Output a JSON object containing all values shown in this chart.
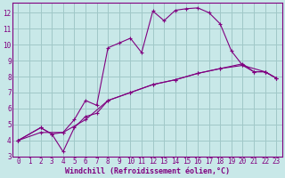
{
  "xlabel": "Windchill (Refroidissement éolien,°C)",
  "background_color": "#c8e8e8",
  "grid_color": "#a0c8c8",
  "line_color": "#800080",
  "spine_color": "#800080",
  "xlim": [
    -0.5,
    23.5
  ],
  "ylim": [
    3,
    12.6
  ],
  "xticks": [
    0,
    1,
    2,
    3,
    4,
    5,
    6,
    7,
    8,
    9,
    10,
    11,
    12,
    13,
    14,
    15,
    16,
    17,
    18,
    19,
    20,
    21,
    22,
    23
  ],
  "yticks": [
    3,
    4,
    5,
    6,
    7,
    8,
    9,
    10,
    11,
    12
  ],
  "series": [
    {
      "x": [
        0,
        2,
        3,
        4,
        5,
        6,
        7,
        8,
        9,
        10,
        11,
        12,
        13,
        14,
        15,
        16,
        17,
        18,
        19,
        20,
        21,
        22,
        23
      ],
      "y": [
        4.0,
        4.8,
        4.4,
        4.5,
        5.3,
        6.5,
        6.2,
        9.8,
        10.1,
        10.4,
        9.5,
        12.1,
        11.5,
        12.15,
        12.25,
        12.3,
        12.0,
        11.3,
        9.6,
        8.7,
        8.3,
        8.3,
        7.9
      ]
    },
    {
      "x": [
        0,
        2,
        3,
        4,
        5,
        6,
        7,
        8,
        10,
        12,
        14,
        16,
        18,
        20,
        21,
        22,
        23
      ],
      "y": [
        4.0,
        4.8,
        4.4,
        3.3,
        4.8,
        5.5,
        5.7,
        6.5,
        7.0,
        7.5,
        7.8,
        8.2,
        8.5,
        8.8,
        8.3,
        8.3,
        7.9
      ]
    },
    {
      "x": [
        0,
        2,
        4,
        6,
        8,
        10,
        12,
        14,
        16,
        18,
        20,
        22,
        23
      ],
      "y": [
        4.0,
        4.5,
        4.5,
        5.3,
        6.5,
        7.0,
        7.5,
        7.8,
        8.2,
        8.5,
        8.7,
        8.3,
        7.9
      ]
    }
  ]
}
